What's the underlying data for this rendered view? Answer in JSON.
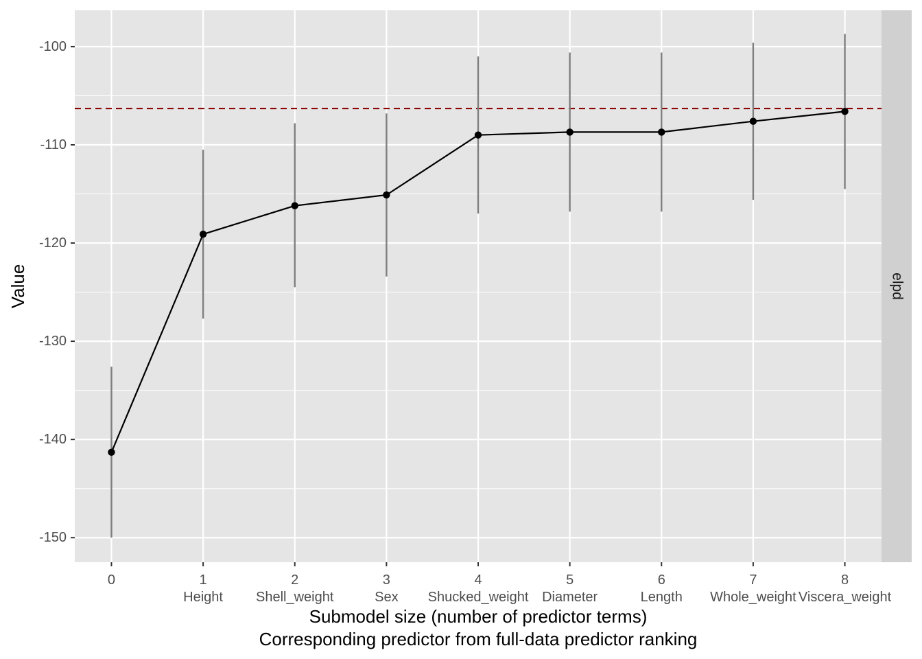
{
  "chart_data": {
    "type": "line",
    "x": [
      0,
      1,
      2,
      3,
      4,
      5,
      6,
      7,
      8
    ],
    "predictors": [
      "",
      "Height",
      "Shell_weight",
      "Sex",
      "Shucked_weight",
      "Diameter",
      "Length",
      "Whole_weight",
      "Viscera_weight"
    ],
    "series": [
      {
        "values": [
          -141.3,
          -119.1,
          -116.2,
          -115.1,
          -109.0,
          -108.7,
          -108.7,
          -107.6,
          -106.6
        ],
        "lower": [
          -150.0,
          -127.7,
          -124.5,
          -123.4,
          -117.0,
          -116.8,
          -116.8,
          -115.6,
          -114.5
        ],
        "upper": [
          -132.6,
          -110.5,
          -107.8,
          -106.8,
          -101.0,
          -100.6,
          -100.6,
          -99.6,
          -98.7
        ]
      }
    ],
    "reference_line": -106.3,
    "xlabel": "Submodel size (number of predictor terms)",
    "xlabel2": "Corresponding predictor from full-data predictor ranking",
    "ylabel": "Value",
    "facet_label": "elpd",
    "ylim": [
      -152.5,
      -96.3
    ],
    "xlim": [
      -0.4,
      8.4
    ],
    "yticks": [
      -100,
      -110,
      -120,
      -130,
      -140,
      -150
    ],
    "ytick_labels": [
      "-100",
      "-110",
      "-120",
      "-130",
      "-140",
      "-150"
    ],
    "xtick_labels": [
      "0",
      "1",
      "2",
      "3",
      "4",
      "5",
      "6",
      "7",
      "8"
    ],
    "grid": true,
    "colors": {
      "panel": "#e5e5e5",
      "grid": "#ffffff",
      "strip": "#d0d0d0",
      "line": "#000000",
      "errorbar": "#7f7f7f",
      "reference": "#8b0000"
    }
  }
}
